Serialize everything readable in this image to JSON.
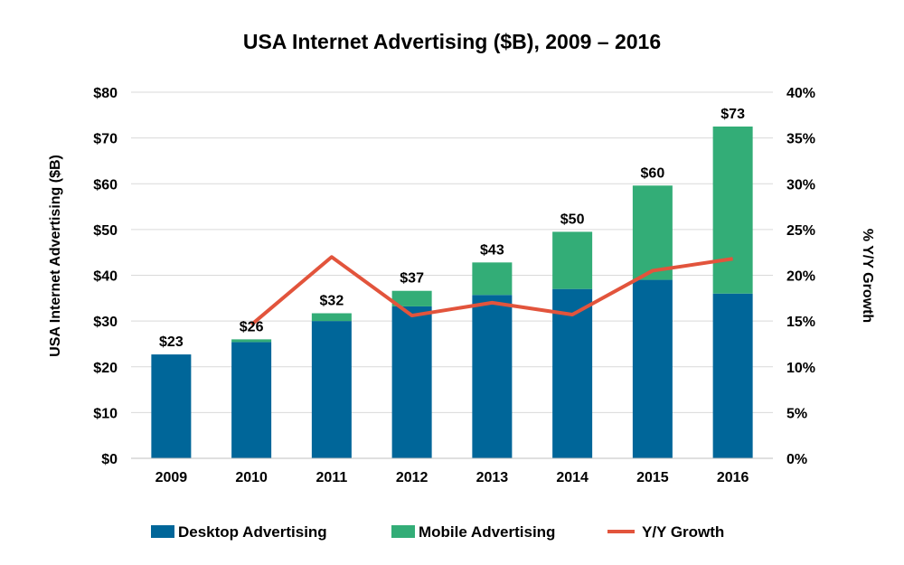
{
  "chart_data": {
    "type": "bar",
    "title": "USA Internet Advertising ($B), 2009 – 2016",
    "ylabel": "USA Internet Advertising ($B)",
    "y2label": "% Y/Y Growth",
    "categories": [
      "2009",
      "2010",
      "2011",
      "2012",
      "2013",
      "2014",
      "2015",
      "2016"
    ],
    "ylim": [
      0,
      80
    ],
    "y2lim": [
      0,
      40
    ],
    "yticks": [
      "$0",
      "$10",
      "$20",
      "$30",
      "$40",
      "$50",
      "$60",
      "$70",
      "$80"
    ],
    "y2ticks": [
      "0%",
      "5%",
      "10%",
      "15%",
      "20%",
      "25%",
      "30%",
      "35%",
      "40%"
    ],
    "series": [
      {
        "name": "Desktop Advertising",
        "kind": "bar",
        "stack": "total",
        "axis": "left",
        "color": "#006699",
        "values": [
          22.7,
          25.4,
          30.0,
          33.2,
          35.7,
          37.0,
          39.0,
          36.0
        ]
      },
      {
        "name": "Mobile Advertising",
        "kind": "bar",
        "stack": "total",
        "axis": "left",
        "color": "#33AD77",
        "values": [
          0.0,
          0.6,
          1.7,
          3.4,
          7.1,
          12.5,
          20.6,
          36.5
        ]
      },
      {
        "name": "Y/Y Growth",
        "kind": "line",
        "axis": "right",
        "color": "#E2543C",
        "values": [
          null,
          14.6,
          22.0,
          15.6,
          17.0,
          15.7,
          20.5,
          21.8
        ]
      }
    ],
    "data_labels": [
      "$23",
      "$26",
      "$32",
      "$37",
      "$43",
      "$50",
      "$60",
      "$73"
    ],
    "grid": true,
    "legend_position": "bottom"
  }
}
